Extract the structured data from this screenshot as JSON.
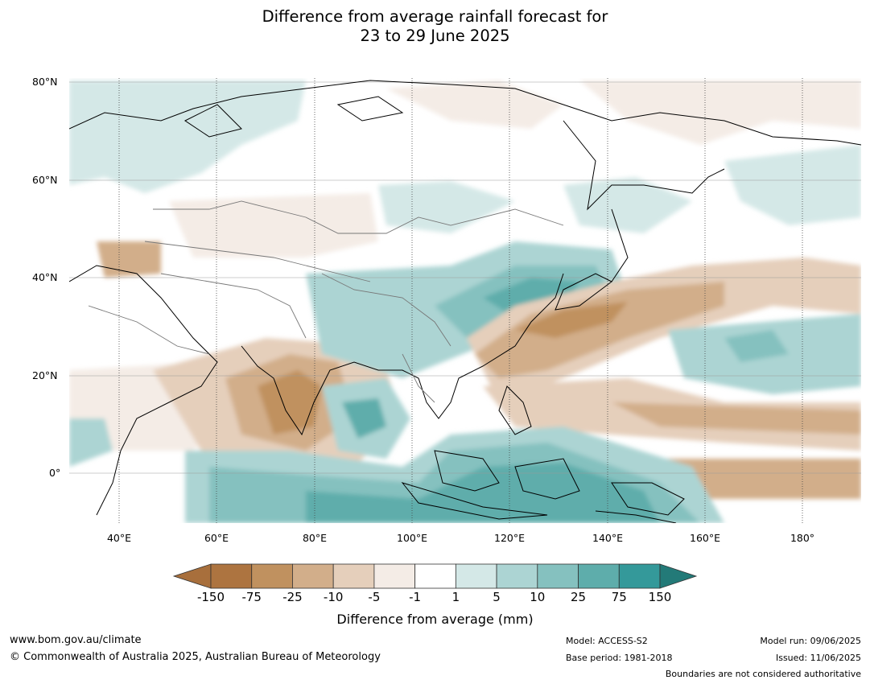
{
  "title_line1": "Difference from average rainfall forecast for",
  "title_line2": "23 to 29 June 2025",
  "map": {
    "lat_labels": [
      "80°N",
      "60°N",
      "40°N",
      "20°N",
      "0°"
    ],
    "lon_labels": [
      "40°E",
      "60°E",
      "80°E",
      "100°E",
      "120°E",
      "140°E",
      "160°E",
      "180°"
    ],
    "region_extent": {
      "lon_min": 30,
      "lon_max": 192,
      "lat_min": -10,
      "lat_max": 81
    }
  },
  "colorbar": {
    "ticks": [
      "-150",
      "-75",
      "-25",
      "-10",
      "-5",
      "-1",
      "1",
      "5",
      "10",
      "25",
      "75",
      "150"
    ],
    "colors": [
      "#a86f3c",
      "#ad7440",
      "#c0915f",
      "#d2ae8a",
      "#e5cfbb",
      "#f4ece6",
      "#ffffff",
      "#d4e8e7",
      "#acd4d3",
      "#85c1bf",
      "#5eadab",
      "#34999a",
      "#237a78"
    ],
    "label": "Difference from average (mm)"
  },
  "footer": {
    "website": "www.bom.gov.au/climate",
    "copyright": "© Commonwealth of Australia 2025, Australian Bureau of Meteorology",
    "model": "Model: ACCESS-S2",
    "base_period": "Base period: 1981-2018",
    "model_run": "Model run: 09/06/2025",
    "issued": "Issued: 11/06/2025",
    "disclaimer": "Boundaries are not considered authoritative"
  }
}
